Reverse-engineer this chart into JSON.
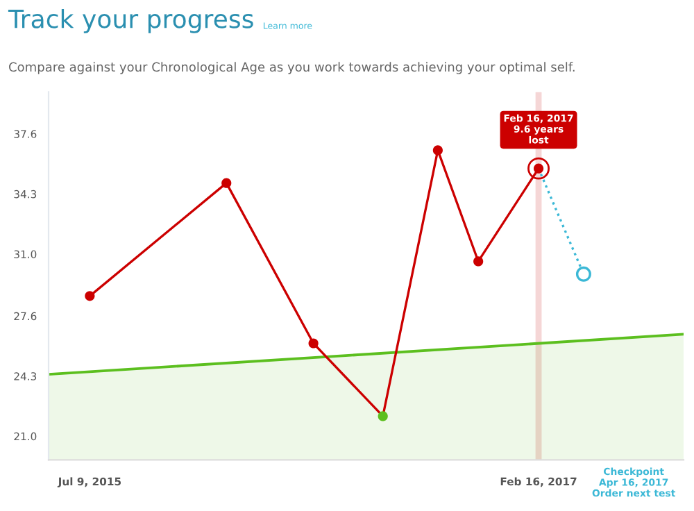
{
  "chart_data": {
    "type": "line",
    "title": "Track your progress",
    "subtitle": "Compare against your Chronological Age as you work towards achieving your optimal self.",
    "annotations": [
      {
        "text": "Feb 16, 2017\n9.6 years\nlost",
        "x": "2017-02-16",
        "y": 35.7
      },
      "Checkpoint\nApr 16, 2017\nOrder next test",
      "Learn more"
    ],
    "series": [
      {
        "type": "area",
        "color": "#5cbf1f",
        "x": [
          "2015-05-16",
          "2017-08-25"
        ],
        "values": [
          24.4,
          26.6
        ],
        "line_style": "solid"
      },
      {
        "color": "#cc0000",
        "colors": [
          "#cc0000",
          "#cc0000",
          "#cc0000",
          "#5cbf1f",
          "#cc0000",
          "#cc0000",
          "#cc0000"
        ],
        "x": [
          "2015-07-09",
          "2016-01-04",
          "2016-04-27",
          "2016-07-27",
          "2016-10-07",
          "2016-11-29",
          "2017-02-16"
        ],
        "values": [
          28.7,
          34.9,
          26.1,
          22.1,
          36.7,
          30.6,
          35.7
        ],
        "marker": "circle",
        "line_style": "solid"
      },
      {
        "type": "line",
        "color": "#3bb8d6",
        "x": [
          "2017-02-16",
          "2017-04-16"
        ],
        "values": [
          35.7,
          29.9
        ],
        "line_style": "dotted"
      },
      {
        "type": "scatter",
        "color": "#3bb8d6",
        "x": [
          "2017-04-16"
        ],
        "values": [
          29.9
        ],
        "marker": "circle"
      }
    ],
    "bands": [
      {
        "axis": "x",
        "from": "2017-02-12",
        "to": "2017-02-20",
        "color": "#f5d6d6"
      }
    ],
    "xlim": [
      "2015-05-16",
      "2017-08-25"
    ],
    "xticks": [
      {
        "value": "2015-07-09",
        "label": "Jul 9, 2015"
      },
      {
        "value": "2017-02-16",
        "label": "Feb 16, 2017"
      }
    ],
    "ylim": [
      19.7,
      39.9
    ],
    "yticks": [
      {
        "value": 21,
        "label": "21.0"
      },
      24.3,
      27.6,
      {
        "value": 31,
        "label": "31.0"
      },
      34.3,
      37.6
    ],
    "grid": false,
    "legend": false
  }
}
